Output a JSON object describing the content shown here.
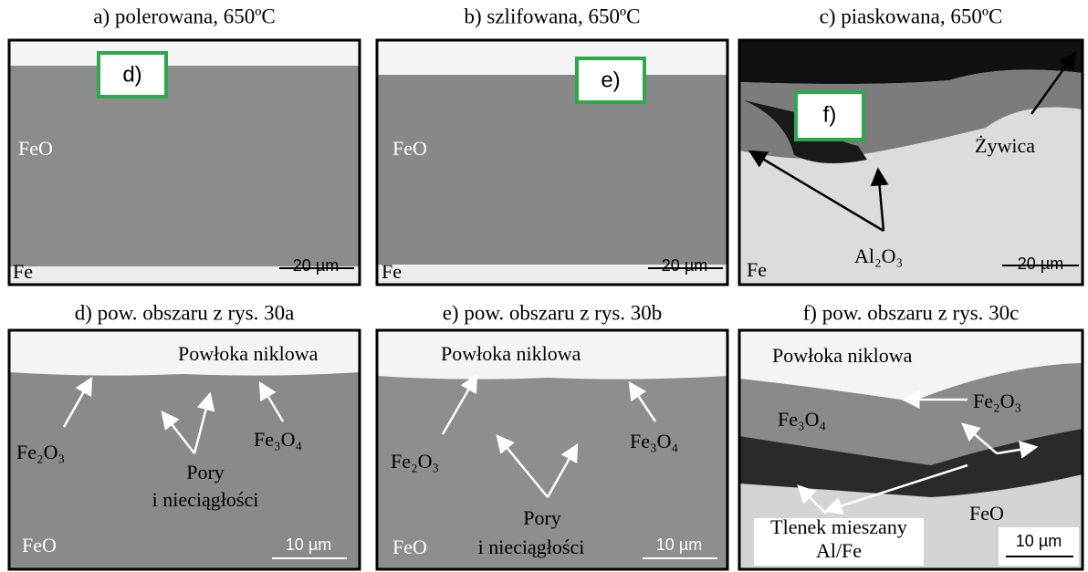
{
  "panels": [
    {
      "title": "a) polerowana, 650ºC",
      "labels": [
        "d)",
        "FeO",
        "Fe"
      ],
      "scale": "20 µm"
    },
    {
      "title": "b) szlifowana, 650ºC",
      "labels": [
        "e)",
        "FeO",
        "Fe"
      ],
      "scale": "20 µm"
    },
    {
      "title": "c) piaskowana, 650ºC",
      "labels": [
        "f)",
        "Żywica",
        "Al₂O₃",
        "Fe"
      ],
      "scale": "20 µm"
    },
    {
      "title": "d) pow. obszaru z rys. 30a",
      "labels": [
        "Powłoka niklowa",
        "Fe₂O₃",
        "Pory",
        "i nieciągłości",
        "Fe₃O₄",
        "FeO"
      ],
      "scale": "10 µm"
    },
    {
      "title": "e) pow. obszaru z rys. 30b",
      "labels": [
        "Powłoka niklowa",
        "Fe₂O₃",
        "Fe₃O₄",
        "Pory",
        "i nieciągłości",
        "FeO"
      ],
      "scale": "10 µm"
    },
    {
      "title": "f) pow. obszaru z rys. 30c",
      "labels": [
        "Powłoka niklowa",
        "Fe₂O₃",
        "Fe₃O₄",
        "FeO",
        "Tlenek mieszany",
        "Al/Fe"
      ],
      "scale": "10 µm"
    }
  ]
}
